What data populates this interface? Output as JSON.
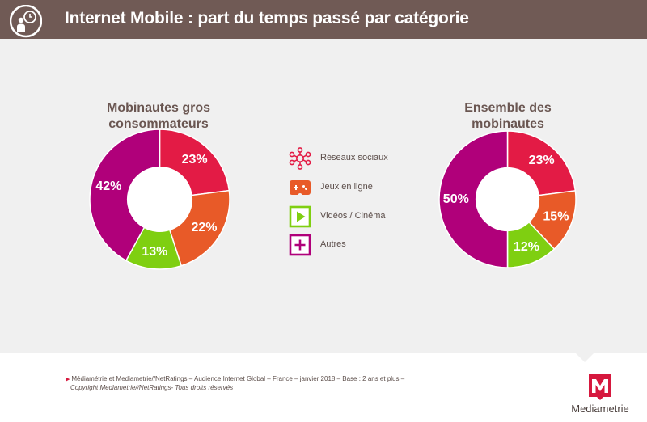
{
  "header": {
    "title": "Internet Mobile : part du temps passé par catégorie",
    "icon": "user-clock-icon"
  },
  "colors": {
    "reseaux": "#e31b45",
    "jeux": "#e85a28",
    "videos": "#7fcf11",
    "autres": "#b0007a",
    "header_bg": "#705a55"
  },
  "legend": [
    {
      "label": "Réseaux sociaux",
      "icon": "network-icon"
    },
    {
      "label": "Jeux en ligne",
      "icon": "gamepad-icon"
    },
    {
      "label": "Vidéos  / Cinéma",
      "icon": "play-icon"
    },
    {
      "label": "Autres",
      "icon": "plus-icon"
    }
  ],
  "chart_data": [
    {
      "type": "pie",
      "title_lines": [
        "Mobinautes gros",
        "consommateurs"
      ],
      "categories": [
        "Réseaux sociaux",
        "Jeux en ligne",
        "Vidéos / Cinéma",
        "Autres"
      ],
      "values": [
        23,
        22,
        13,
        42
      ],
      "labels": [
        "23%",
        "22%",
        "13%",
        "42%"
      ],
      "unit": "%"
    },
    {
      "type": "pie",
      "title_lines": [
        "Ensemble des",
        "mobinautes"
      ],
      "categories": [
        "Réseaux sociaux",
        "Jeux en ligne",
        "Vidéos / Cinéma",
        "Autres"
      ],
      "values": [
        23,
        15,
        12,
        50
      ],
      "labels": [
        "23%",
        "15%",
        "12%",
        "50%"
      ],
      "unit": "%"
    }
  ],
  "footer": {
    "source": "Médiamétrie et Mediametrie//NetRatings – Audience Internet Global – France – janvier 2018 – Base : 2 ans et plus –",
    "copyright": "Copyright Mediametrie//NetRatings- Tous droits réservés",
    "logo_text": "Mediametrie"
  }
}
